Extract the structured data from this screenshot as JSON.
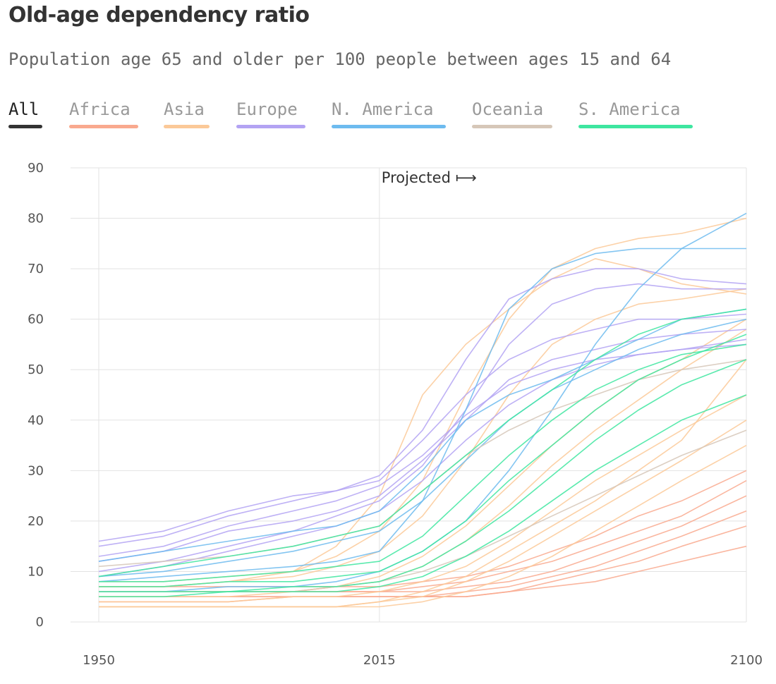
{
  "title": "Old-age dependency ratio",
  "subtitle": "Population age 65 and older per 100 people between ages 15 and 64",
  "tabs": [
    {
      "label": "All",
      "color": "#333333",
      "active": true
    },
    {
      "label": "Africa",
      "color": "#f9a98e",
      "active": false
    },
    {
      "label": "Asia",
      "color": "#fbc998",
      "active": false
    },
    {
      "label": "Europe",
      "color": "#b3a3f3",
      "active": false
    },
    {
      "label": "N. America",
      "color": "#6dbbef",
      "active": false
    },
    {
      "label": "Oceania",
      "color": "#d6c7b8",
      "active": false
    },
    {
      "label": "S. America",
      "color": "#3ee6a0",
      "active": false
    }
  ],
  "chart_data": {
    "type": "line",
    "title": "Old-age dependency ratio",
    "subtitle": "Population age 65 and older per 100 people between ages 15 and 64",
    "xlabel": "",
    "ylabel": "",
    "xlim": [
      1950,
      2100
    ],
    "ylim": [
      0,
      90
    ],
    "x_ticks": [
      1950,
      2015,
      2100
    ],
    "y_ticks": [
      0,
      10,
      20,
      30,
      40,
      50,
      60,
      70,
      80,
      90
    ],
    "grid": true,
    "annotation": {
      "text": "Projected ⟼",
      "x": 2015
    },
    "x": [
      1950,
      1965,
      1980,
      1995,
      2005,
      2015,
      2025,
      2035,
      2045,
      2055,
      2065,
      2075,
      2085,
      2100
    ],
    "series": [
      {
        "region": "Africa",
        "color": "#f9a98e",
        "values": [
          5,
          5,
          5,
          5,
          5,
          5,
          5,
          6,
          7,
          9,
          11,
          14,
          17,
          22
        ]
      },
      {
        "region": "Africa",
        "color": "#f9a98e",
        "values": [
          6,
          6,
          6,
          6,
          6,
          6,
          6,
          7,
          8,
          10,
          13,
          16,
          19,
          25
        ]
      },
      {
        "region": "Africa",
        "color": "#f9a98e",
        "values": [
          4,
          4,
          4,
          5,
          5,
          5,
          5,
          5,
          6,
          8,
          10,
          12,
          15,
          19
        ]
      },
      {
        "region": "Africa",
        "color": "#f9a98e",
        "values": [
          6,
          6,
          6,
          6,
          6,
          6,
          7,
          8,
          10,
          12,
          15,
          18,
          21,
          28
        ]
      },
      {
        "region": "Africa",
        "color": "#f9a98e",
        "values": [
          5,
          5,
          5,
          5,
          5,
          5,
          5,
          5,
          6,
          7,
          8,
          10,
          12,
          15
        ]
      },
      {
        "region": "Africa",
        "color": "#f9a98e",
        "values": [
          7,
          7,
          7,
          7,
          7,
          7,
          8,
          9,
          11,
          14,
          17,
          21,
          24,
          30
        ]
      },
      {
        "region": "Asia",
        "color": "#fbc998",
        "values": [
          8,
          8,
          9,
          10,
          13,
          18,
          28,
          45,
          60,
          70,
          74,
          76,
          77,
          80
        ]
      },
      {
        "region": "Asia",
        "color": "#fbc998",
        "values": [
          7,
          7,
          8,
          9,
          11,
          14,
          21,
          32,
          45,
          55,
          60,
          63,
          64,
          66
        ]
      },
      {
        "region": "Asia",
        "color": "#fbc998",
        "values": [
          6,
          6,
          6,
          6,
          7,
          8,
          11,
          16,
          23,
          31,
          38,
          44,
          50,
          58
        ]
      },
      {
        "region": "Asia",
        "color": "#fbc998",
        "values": [
          4,
          4,
          4,
          5,
          5,
          6,
          8,
          11,
          16,
          22,
          28,
          33,
          38,
          45
        ]
      },
      {
        "region": "Asia",
        "color": "#fbc998",
        "values": [
          3,
          3,
          3,
          3,
          3,
          3,
          4,
          6,
          9,
          13,
          18,
          23,
          28,
          35
        ]
      },
      {
        "region": "Asia",
        "color": "#fbc998",
        "values": [
          5,
          5,
          5,
          6,
          7,
          9,
          13,
          19,
          27,
          35,
          42,
          48,
          52,
          60
        ]
      },
      {
        "region": "Asia",
        "color": "#fbc998",
        "values": [
          3,
          3,
          3,
          3,
          3,
          4,
          5,
          8,
          12,
          17,
          22,
          27,
          32,
          40
        ]
      },
      {
        "region": "Asia",
        "color": "#fbc998",
        "values": [
          7,
          7,
          8,
          10,
          15,
          25,
          45,
          55,
          62,
          68,
          72,
          70,
          67,
          65
        ]
      },
      {
        "region": "Asia",
        "color": "#fbc998",
        "values": [
          3,
          3,
          3,
          3,
          3,
          4,
          6,
          9,
          14,
          19,
          24,
          30,
          36,
          52
        ]
      },
      {
        "region": "Europe",
        "color": "#b3a3f3",
        "values": [
          15,
          17,
          21,
          24,
          26,
          28,
          36,
          45,
          52,
          56,
          58,
          60,
          60,
          61
        ]
      },
      {
        "region": "Europe",
        "color": "#b3a3f3",
        "values": [
          12,
          14,
          18,
          20,
          22,
          25,
          32,
          40,
          48,
          52,
          54,
          56,
          57,
          58
        ]
      },
      {
        "region": "Europe",
        "color": "#b3a3f3",
        "values": [
          10,
          12,
          15,
          18,
          21,
          24,
          31,
          42,
          55,
          63,
          66,
          67,
          66,
          66
        ]
      },
      {
        "region": "Europe",
        "color": "#b3a3f3",
        "values": [
          13,
          15,
          19,
          22,
          24,
          27,
          33,
          41,
          47,
          50,
          52,
          53,
          54,
          55
        ]
      },
      {
        "region": "Europe",
        "color": "#b3a3f3",
        "values": [
          16,
          18,
          22,
          25,
          26,
          29,
          38,
          52,
          64,
          68,
          70,
          70,
          68,
          67
        ]
      },
      {
        "region": "Europe",
        "color": "#b3a3f3",
        "values": [
          9,
          11,
          14,
          17,
          19,
          22,
          28,
          36,
          43,
          48,
          51,
          53,
          54,
          56
        ]
      },
      {
        "region": "N. America",
        "color": "#6dbbef",
        "values": [
          12,
          14,
          16,
          18,
          19,
          22,
          30,
          40,
          45,
          48,
          52,
          56,
          60,
          62
        ]
      },
      {
        "region": "N. America",
        "color": "#6dbbef",
        "values": [
          8,
          9,
          10,
          11,
          12,
          14,
          24,
          42,
          62,
          70,
          73,
          74,
          74,
          74
        ]
      },
      {
        "region": "N. America",
        "color": "#6dbbef",
        "values": [
          6,
          6,
          7,
          7,
          8,
          10,
          14,
          20,
          30,
          42,
          55,
          66,
          74,
          81
        ]
      },
      {
        "region": "N. America",
        "color": "#6dbbef",
        "values": [
          9,
          10,
          12,
          14,
          16,
          18,
          24,
          32,
          40,
          46,
          50,
          54,
          57,
          60
        ]
      },
      {
        "region": "Oceania",
        "color": "#d6c7b8",
        "values": [
          11,
          12,
          13,
          15,
          17,
          19,
          26,
          33,
          38,
          42,
          45,
          48,
          50,
          52
        ]
      },
      {
        "region": "Oceania",
        "color": "#d6c7b8",
        "values": [
          6,
          6,
          6,
          6,
          7,
          8,
          10,
          13,
          17,
          21,
          25,
          29,
          33,
          38
        ]
      },
      {
        "region": "S. America",
        "color": "#3ee6a0",
        "values": [
          7,
          7,
          8,
          8,
          9,
          10,
          14,
          20,
          28,
          35,
          42,
          48,
          52,
          57
        ]
      },
      {
        "region": "S. America",
        "color": "#3ee6a0",
        "values": [
          8,
          8,
          9,
          10,
          11,
          12,
          17,
          25,
          33,
          40,
          46,
          50,
          53,
          55
        ]
      },
      {
        "region": "S. America",
        "color": "#3ee6a0",
        "values": [
          6,
          6,
          6,
          7,
          7,
          8,
          11,
          16,
          22,
          29,
          36,
          42,
          47,
          52
        ]
      },
      {
        "region": "S. America",
        "color": "#3ee6a0",
        "values": [
          9,
          11,
          13,
          15,
          17,
          19,
          26,
          33,
          40,
          46,
          52,
          57,
          60,
          62
        ]
      },
      {
        "region": "S. America",
        "color": "#3ee6a0",
        "values": [
          5,
          5,
          6,
          6,
          6,
          7,
          9,
          13,
          18,
          24,
          30,
          35,
          40,
          45
        ]
      }
    ]
  }
}
